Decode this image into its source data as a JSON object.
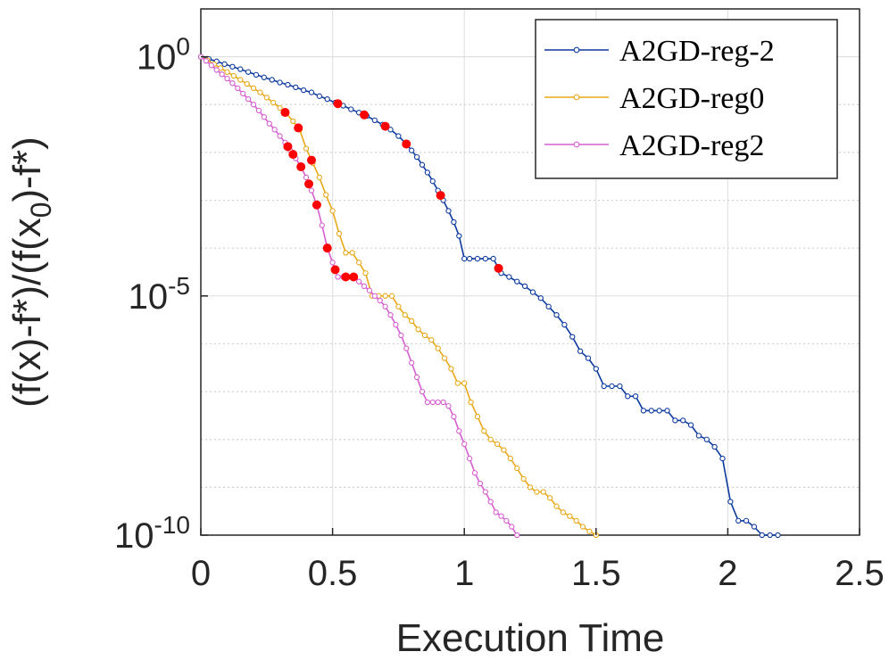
{
  "chart_data": {
    "type": "line",
    "xlabel": "Execution Time",
    "ylabel": "(f(x)-f*)/(f(x0)-f*)",
    "yscale": "log",
    "xlim": [
      0,
      2.5
    ],
    "ylim": [
      1e-10,
      10.0
    ],
    "x_ticks": [
      0,
      0.5,
      1,
      1.5,
      2,
      2.5
    ],
    "x_tick_labels": [
      "0",
      "0.5",
      "1",
      "1.5",
      "2",
      "2.5"
    ],
    "y_ticks": [
      {
        "base": "10",
        "exp": "0",
        "value": 1
      },
      {
        "base": "10",
        "exp": "-5",
        "value": 1e-05
      },
      {
        "base": "10",
        "exp": "-10",
        "value": 1e-10
      }
    ],
    "grid": true,
    "legend_position": "top-right",
    "series": [
      {
        "name": "A2GD-reg-2",
        "color": "#0d3a9e",
        "marker": "open-circle",
        "x": [
          0,
          0.03,
          0.06,
          0.09,
          0.12,
          0.15,
          0.18,
          0.21,
          0.24,
          0.27,
          0.3,
          0.33,
          0.36,
          0.39,
          0.42,
          0.45,
          0.48,
          0.51,
          0.54,
          0.57,
          0.6,
          0.63,
          0.66,
          0.69,
          0.72,
          0.75,
          0.78,
          0.8,
          0.82,
          0.84,
          0.86,
          0.88,
          0.9,
          0.92,
          0.94,
          0.96,
          0.98,
          1.0,
          1.02,
          1.05,
          1.08,
          1.11,
          1.14,
          1.17,
          1.2,
          1.23,
          1.26,
          1.29,
          1.32,
          1.35,
          1.38,
          1.41,
          1.44,
          1.47,
          1.5,
          1.53,
          1.56,
          1.59,
          1.62,
          1.65,
          1.68,
          1.71,
          1.74,
          1.77,
          1.8,
          1.83,
          1.86,
          1.89,
          1.92,
          1.95,
          1.98,
          2.01,
          2.04,
          2.07,
          2.1,
          2.13,
          2.16,
          2.19
        ],
        "y": [
          1,
          0.9,
          0.8,
          0.7,
          0.62,
          0.55,
          0.48,
          0.42,
          0.37,
          0.33,
          0.29,
          0.26,
          0.23,
          0.2,
          0.18,
          0.15,
          0.13,
          0.11,
          0.095,
          0.08,
          0.068,
          0.058,
          0.047,
          0.038,
          0.03,
          0.022,
          0.015,
          0.011,
          0.008,
          0.0055,
          0.0038,
          0.0025,
          0.0016,
          0.001,
          0.0006,
          0.00035,
          0.00018,
          6e-05,
          6e-05,
          6e-05,
          6e-05,
          6e-05,
          3e-05,
          2.5e-05,
          2e-05,
          1.6e-05,
          1.2e-05,
          9e-06,
          6e-06,
          4e-06,
          2.5e-06,
          1.4e-06,
          7e-07,
          5e-07,
          3e-07,
          1.3e-07,
          1.3e-07,
          1.3e-07,
          8e-08,
          8e-08,
          4e-08,
          4e-08,
          4e-08,
          4e-08,
          2.5e-08,
          2.5e-08,
          2e-08,
          1.2e-08,
          1e-08,
          7e-09,
          4e-09,
          5e-10,
          2e-10,
          2e-10,
          1.5e-10,
          1e-10,
          1e-10,
          1e-10
        ],
        "restart_x": [
          0.52,
          0.62,
          0.7,
          0.78,
          0.91,
          1.13
        ]
      },
      {
        "name": "A2GD-reg0",
        "color": "#e8a81a",
        "marker": "open-circle",
        "x": [
          0,
          0.025,
          0.05,
          0.075,
          0.1,
          0.125,
          0.15,
          0.175,
          0.2,
          0.225,
          0.25,
          0.275,
          0.3,
          0.325,
          0.35,
          0.375,
          0.4,
          0.425,
          0.45,
          0.475,
          0.5,
          0.525,
          0.55,
          0.575,
          0.6,
          0.625,
          0.65,
          0.675,
          0.7,
          0.725,
          0.75,
          0.775,
          0.8,
          0.825,
          0.85,
          0.875,
          0.9,
          0.925,
          0.95,
          0.975,
          1.0,
          1.025,
          1.05,
          1.075,
          1.1,
          1.125,
          1.15,
          1.175,
          1.2,
          1.225,
          1.25,
          1.275,
          1.3,
          1.325,
          1.35,
          1.375,
          1.4,
          1.425,
          1.45,
          1.475,
          1.5
        ],
        "y": [
          1,
          0.85,
          0.7,
          0.58,
          0.48,
          0.4,
          0.33,
          0.27,
          0.22,
          0.18,
          0.14,
          0.11,
          0.085,
          0.065,
          0.045,
          0.03,
          0.012,
          0.006,
          0.003,
          0.0013,
          0.0006,
          0.0002,
          8e-05,
          8e-05,
          5e-05,
          3e-05,
          1e-05,
          1e-05,
          1e-05,
          1e-05,
          6e-06,
          4e-06,
          3e-06,
          2e-06,
          1.5e-06,
          1.2e-06,
          8e-07,
          5e-07,
          3e-07,
          1.5e-07,
          1.5e-07,
          6e-08,
          3e-08,
          1.5e-08,
          1e-08,
          8e-09,
          6e-09,
          4e-09,
          2.5e-09,
          1.5e-09,
          1e-09,
          8e-10,
          8e-10,
          6e-10,
          4e-10,
          3e-10,
          2.5e-10,
          2e-10,
          1.5e-10,
          1.2e-10,
          1e-10
        ],
        "restart_x": [
          0.32,
          0.37,
          0.42
        ]
      },
      {
        "name": "A2GD-reg2",
        "color": "#d65fd0",
        "marker": "open-circle",
        "x": [
          0,
          0.02,
          0.04,
          0.06,
          0.08,
          0.1,
          0.12,
          0.14,
          0.16,
          0.18,
          0.2,
          0.22,
          0.24,
          0.26,
          0.28,
          0.3,
          0.32,
          0.34,
          0.36,
          0.38,
          0.4,
          0.42,
          0.44,
          0.46,
          0.48,
          0.5,
          0.52,
          0.54,
          0.56,
          0.58,
          0.6,
          0.62,
          0.64,
          0.66,
          0.68,
          0.7,
          0.72,
          0.74,
          0.76,
          0.78,
          0.8,
          0.82,
          0.84,
          0.86,
          0.88,
          0.9,
          0.92,
          0.94,
          0.96,
          0.98,
          1.0,
          1.02,
          1.04,
          1.06,
          1.08,
          1.1,
          1.12,
          1.14,
          1.16,
          1.18,
          1.2
        ],
        "y": [
          1,
          0.82,
          0.66,
          0.53,
          0.43,
          0.35,
          0.28,
          0.22,
          0.17,
          0.13,
          0.1,
          0.075,
          0.055,
          0.04,
          0.03,
          0.022,
          0.016,
          0.011,
          0.0075,
          0.005,
          0.003,
          0.0016,
          0.0008,
          0.0003,
          0.0001,
          5e-05,
          2.5e-05,
          2.5e-05,
          2.5e-05,
          2.5e-05,
          2e-05,
          1.6e-05,
          1.3e-05,
          1e-05,
          8e-06,
          6e-06,
          4e-06,
          2.5e-06,
          1.5e-06,
          8e-07,
          4e-07,
          2e-07,
          1e-07,
          6e-08,
          6e-08,
          6e-08,
          6e-08,
          5e-08,
          3e-08,
          1.5e-08,
          8e-09,
          4e-09,
          2e-09,
          1.2e-09,
          8e-10,
          5e-10,
          3e-10,
          2.5e-10,
          2e-10,
          1.5e-10,
          1e-10
        ],
        "restart_x": [
          0.33,
          0.35,
          0.38,
          0.41,
          0.44,
          0.48,
          0.51,
          0.55,
          0.58
        ]
      }
    ],
    "restart_marker_color": "#ff0000"
  }
}
